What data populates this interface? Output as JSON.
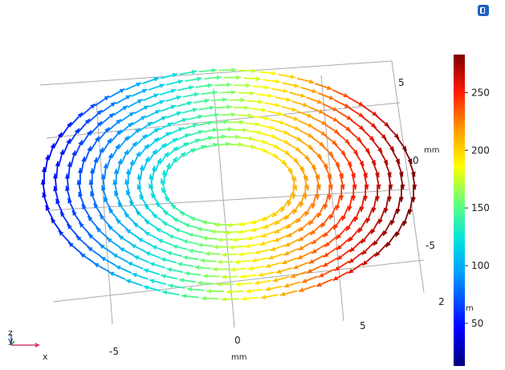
{
  "toolbar": {
    "icon": "app-logo-icon"
  },
  "axes": {
    "x_ticks": [
      "-5",
      "0",
      "5"
    ],
    "x_unit": "mm",
    "y_ticks": [
      "5",
      "0",
      "-5"
    ],
    "y_unit": "mm",
    "z_ticks": [
      "2"
    ],
    "z_unit_partial": "m"
  },
  "colorbar": {
    "ticks": [
      "250",
      "200",
      "150",
      "100",
      "50"
    ],
    "values": [
      250,
      200,
      150,
      100,
      50
    ],
    "min": 13,
    "max": 283,
    "colormap": "rainbow"
  },
  "triad": {
    "z": "z",
    "y": "y",
    "x": "x"
  },
  "chart_data": {
    "type": "scatter",
    "description_kind": "arrow-vector-field",
    "x_ticks": [
      -5,
      0,
      5
    ],
    "y_ticks": [
      5,
      0,
      -5
    ],
    "z_tick": 2,
    "color_range": [
      13,
      283
    ],
    "colorbar_ticks": [
      250,
      200,
      150,
      100,
      50
    ]
  },
  "colors": {
    "frame": "#9a9a9a",
    "text": "#222222",
    "triad_x": "#d43d7a",
    "triad_y": "#2e8b57",
    "triad_z": "#1f5fbf"
  }
}
